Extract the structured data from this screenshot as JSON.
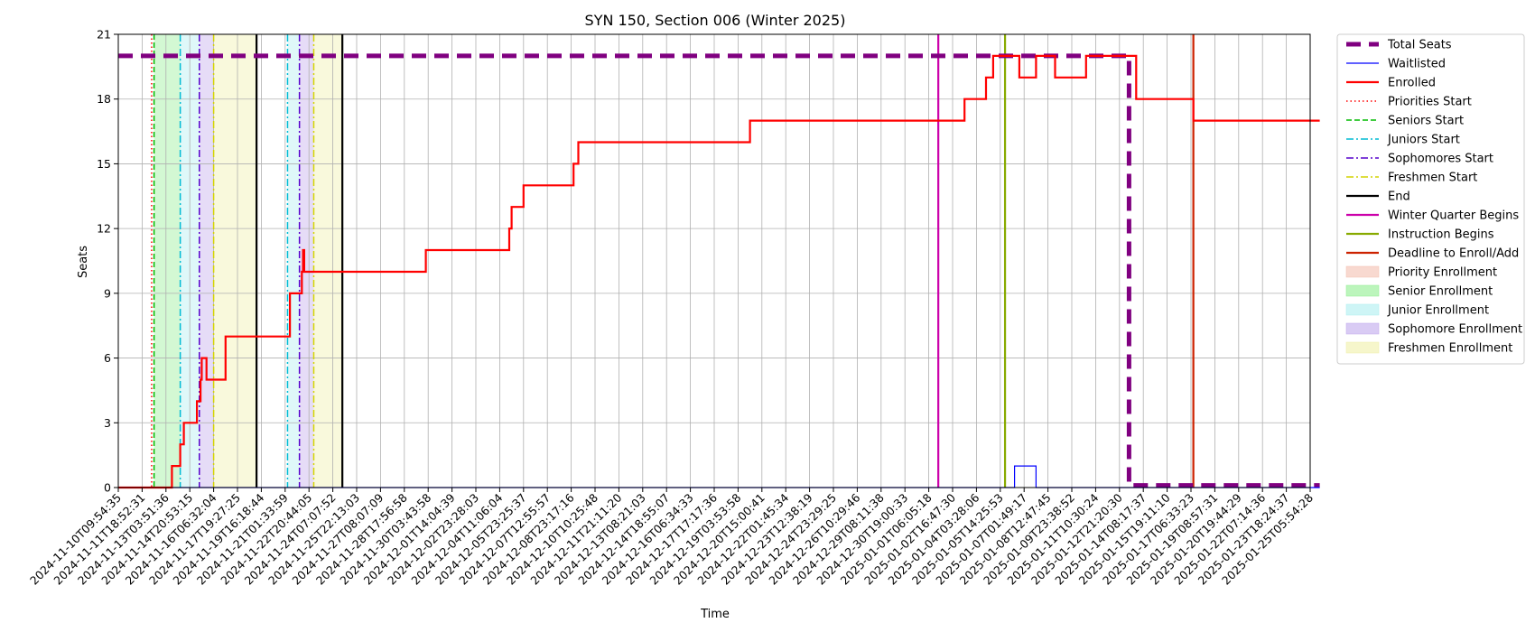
{
  "chart_data": {
    "type": "line",
    "title": "SYN 150, Section 006 (Winter 2025)",
    "xlabel": "Time",
    "ylabel": "Seats",
    "ylim": [
      0,
      21
    ],
    "yticks": [
      0,
      3,
      6,
      9,
      12,
      15,
      18,
      21
    ],
    "grid": true,
    "legend_position": "outside-right",
    "x_tick_labels": [
      "2024-11-10T09:54:35",
      "2024-11-11T18:52:31",
      "2024-11-13T03:51:36",
      "2024-11-14T20:53:15",
      "2024-11-16T06:32:04",
      "2024-11-17T19:27:25",
      "2024-11-19T16:18:44",
      "2024-11-21T01:33:59",
      "2024-11-22T20:44:05",
      "2024-11-24T07:07:52",
      "2024-11-25T22:13:03",
      "2024-11-27T08:07:09",
      "2024-11-28T17:56:58",
      "2024-11-30T03:43:58",
      "2024-12-01T14:04:39",
      "2024-12-02T23:28:03",
      "2024-12-04T11:06:04",
      "2024-12-05T23:25:37",
      "2024-12-07T12:55:57",
      "2024-12-08T23:17:16",
      "2024-12-10T10:25:48",
      "2024-12-11T21:11:20",
      "2024-12-13T08:21:03",
      "2024-12-14T18:55:07",
      "2024-12-16T06:34:33",
      "2024-12-17T17:17:36",
      "2024-12-19T03:53:58",
      "2024-12-20T15:00:41",
      "2024-12-22T01:45:34",
      "2024-12-23T12:38:19",
      "2024-12-24T23:29:25",
      "2024-12-26T10:29:46",
      "2024-12-29T08:11:38",
      "2024-12-30T19:00:33",
      "2025-01-01T06:05:18",
      "2025-01-02T16:47:30",
      "2025-01-04T03:28:06",
      "2025-01-05T14:25:53",
      "2025-01-07T01:49:17",
      "2025-01-08T12:47:45",
      "2025-01-09T23:38:52",
      "2025-01-11T10:30:24",
      "2025-01-12T21:20:30",
      "2025-01-14T08:17:37",
      "2025-01-15T19:11:10",
      "2025-01-17T06:33:23",
      "2025-01-19T08:57:31",
      "2025-01-20T19:44:29",
      "2025-01-22T07:14:36",
      "2025-01-23T18:24:37",
      "2025-01-25T05:54:28"
    ],
    "series": [
      {
        "name": "Total Seats",
        "color": "#800080",
        "style": "dashed-thick",
        "points": [
          [
            0,
            20
          ],
          [
            42.4,
            20
          ],
          [
            42.4,
            0.1
          ],
          [
            50.4,
            0.1
          ]
        ]
      },
      {
        "name": "Waitlisted",
        "color": "#0000ff",
        "style": "solid-thin",
        "points": [
          [
            0,
            0
          ],
          [
            37.6,
            0
          ],
          [
            37.6,
            1
          ],
          [
            38.5,
            1
          ],
          [
            38.5,
            0
          ],
          [
            50.4,
            0
          ]
        ]
      },
      {
        "name": "Enrolled",
        "color": "#ff0000",
        "style": "solid",
        "points": [
          [
            0,
            0
          ],
          [
            2.25,
            0
          ],
          [
            2.25,
            1
          ],
          [
            2.6,
            1
          ],
          [
            2.6,
            2
          ],
          [
            2.75,
            2
          ],
          [
            2.75,
            3
          ],
          [
            3.3,
            3
          ],
          [
            3.3,
            4
          ],
          [
            3.45,
            4
          ],
          [
            3.45,
            5
          ],
          [
            3.5,
            5
          ],
          [
            3.5,
            6
          ],
          [
            3.7,
            6
          ],
          [
            3.7,
            5
          ],
          [
            4.5,
            5
          ],
          [
            4.5,
            7
          ],
          [
            7.2,
            7
          ],
          [
            7.2,
            9
          ],
          [
            7.7,
            9
          ],
          [
            7.7,
            10
          ],
          [
            7.75,
            10
          ],
          [
            7.75,
            11
          ],
          [
            7.8,
            11
          ],
          [
            7.8,
            10
          ],
          [
            12.9,
            10
          ],
          [
            12.9,
            11
          ],
          [
            16.4,
            11
          ],
          [
            16.4,
            12
          ],
          [
            16.5,
            12
          ],
          [
            16.5,
            13
          ],
          [
            17,
            13
          ],
          [
            17,
            14
          ],
          [
            19.1,
            14
          ],
          [
            19.1,
            15
          ],
          [
            19.3,
            15
          ],
          [
            19.3,
            16
          ],
          [
            26.5,
            16
          ],
          [
            26.5,
            17
          ],
          [
            35.5,
            17
          ],
          [
            35.5,
            18
          ],
          [
            36.4,
            18
          ],
          [
            36.4,
            19
          ],
          [
            36.7,
            19
          ],
          [
            36.7,
            20
          ],
          [
            37.8,
            20
          ],
          [
            37.8,
            19
          ],
          [
            38.5,
            19
          ],
          [
            38.5,
            20
          ],
          [
            39.3,
            20
          ],
          [
            39.3,
            19
          ],
          [
            40.6,
            19
          ],
          [
            40.6,
            20
          ],
          [
            42.7,
            20
          ],
          [
            42.7,
            18
          ],
          [
            45.1,
            18
          ],
          [
            45.1,
            17
          ],
          [
            50.4,
            17
          ]
        ]
      }
    ],
    "vertical_markers": [
      {
        "name": "Priorities Start",
        "x": 1.4,
        "color": "#ff0000",
        "style": "dotted"
      },
      {
        "name": "Seniors Start",
        "x": 1.5,
        "color": "#00bb00",
        "style": "dashed"
      },
      {
        "name": "Juniors Start",
        "x": 2.6,
        "color": "#00bcd4",
        "style": "dashdot"
      },
      {
        "name": "Juniors Start",
        "x": 7.1,
        "color": "#00bcd4",
        "style": "dashdot"
      },
      {
        "name": "Sophomores Start",
        "x": 3.4,
        "color": "#5500cc",
        "style": "dashdot"
      },
      {
        "name": "Sophomores Start",
        "x": 7.6,
        "color": "#5500cc",
        "style": "dashdot"
      },
      {
        "name": "Freshmen Start",
        "x": 4.0,
        "color": "#d4d400",
        "style": "dashdot"
      },
      {
        "name": "Freshmen Start",
        "x": 8.2,
        "color": "#d4d400",
        "style": "dashdot"
      },
      {
        "name": "End",
        "x": 5.8,
        "color": "#000000",
        "style": "solid"
      },
      {
        "name": "End",
        "x": 9.4,
        "color": "#000000",
        "style": "solid"
      },
      {
        "name": "Winter Quarter Begins",
        "x": 34.4,
        "color": "#cc00aa",
        "style": "solid"
      },
      {
        "name": "Instruction Begins",
        "x": 37.2,
        "color": "#88aa00",
        "style": "solid"
      },
      {
        "name": "Deadline to Enroll/Add",
        "x": 45.1,
        "color": "#cc2200",
        "style": "solid"
      }
    ],
    "shaded_regions": [
      {
        "name": "Senior Enrollment",
        "from": 1.5,
        "to": 2.6,
        "color": "#90ee90"
      },
      {
        "name": "Junior Enrollment",
        "from": 2.6,
        "to": 3.4,
        "color": "#aeeef0"
      },
      {
        "name": "Sophomore Enrollment",
        "from": 3.4,
        "to": 4.0,
        "color": "#c0a8ec"
      },
      {
        "name": "Freshmen Enrollment",
        "from": 4.0,
        "to": 5.8,
        "color": "#f0f0a8"
      },
      {
        "name": "Junior Enrollment",
        "from": 7.1,
        "to": 7.6,
        "color": "#aeeef0"
      },
      {
        "name": "Sophomore Enrollment",
        "from": 7.6,
        "to": 8.2,
        "color": "#c0a8ec"
      },
      {
        "name": "Freshmen Enrollment",
        "from": 8.2,
        "to": 9.4,
        "color": "#f0f0a8"
      }
    ],
    "legend": [
      {
        "label": "Total Seats",
        "kind": "line",
        "color": "#800080",
        "style": "dashed-thick"
      },
      {
        "label": "Waitlisted",
        "kind": "line",
        "color": "#0000ff",
        "style": "solid-thin"
      },
      {
        "label": "Enrolled",
        "kind": "line",
        "color": "#ff0000",
        "style": "solid"
      },
      {
        "label": "Priorities Start",
        "kind": "line",
        "color": "#ff0000",
        "style": "dotted"
      },
      {
        "label": "Seniors Start",
        "kind": "line",
        "color": "#00bb00",
        "style": "dashed"
      },
      {
        "label": "Juniors Start",
        "kind": "line",
        "color": "#00bcd4",
        "style": "dashdot"
      },
      {
        "label": "Sophomores Start",
        "kind": "line",
        "color": "#5500cc",
        "style": "dashdot"
      },
      {
        "label": "Freshmen Start",
        "kind": "line",
        "color": "#d4d400",
        "style": "dashdot"
      },
      {
        "label": "End",
        "kind": "line",
        "color": "#000000",
        "style": "solid"
      },
      {
        "label": "Winter Quarter Begins",
        "kind": "line",
        "color": "#cc00aa",
        "style": "solid"
      },
      {
        "label": "Instruction Begins",
        "kind": "line",
        "color": "#88aa00",
        "style": "solid"
      },
      {
        "label": "Deadline to Enroll/Add",
        "kind": "line",
        "color": "#cc2200",
        "style": "solid"
      },
      {
        "label": "Priority Enrollment",
        "kind": "patch",
        "color": "#f4c0b0"
      },
      {
        "label": "Senior Enrollment",
        "kind": "patch",
        "color": "#90ee90"
      },
      {
        "label": "Junior Enrollment",
        "kind": "patch",
        "color": "#aeeef0"
      },
      {
        "label": "Sophomore Enrollment",
        "kind": "patch",
        "color": "#c0a8ec"
      },
      {
        "label": "Freshmen Enrollment",
        "kind": "patch",
        "color": "#f0f0a8"
      }
    ]
  }
}
